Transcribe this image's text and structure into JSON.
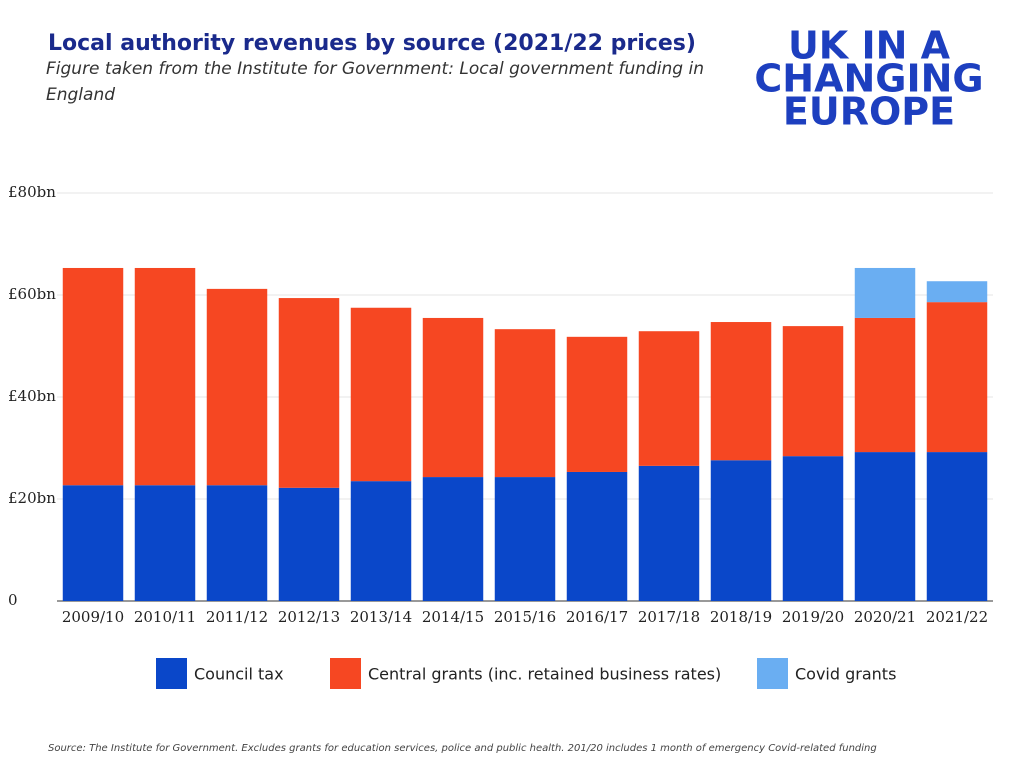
{
  "chart_data": {
    "type": "stacked_bar",
    "title": "Local authority revenues by source (2021/22 prices)",
    "subtitle": "Figure taken from the Institute for Government: Local government funding in England",
    "logo": [
      "UK IN A",
      "CHANGING",
      "EUROPE"
    ],
    "source": "Source: The Institute for Government. Excludes grants for education services, police and public health. 201/20 includes 1 month of emergency Covid-related funding",
    "categories": [
      "2009/10",
      "2010/11",
      "2011/12",
      "2012/13",
      "2013/14",
      "2014/15",
      "2015/16",
      "2016/17",
      "2017/18",
      "2018/19",
      "2019/20",
      "2020/21",
      "2021/22"
    ],
    "series": [
      {
        "name": "Council tax",
        "color": "#0a47c9",
        "values": [
          22.7,
          22.7,
          22.7,
          22.2,
          23.5,
          24.3,
          24.3,
          25.3,
          26.5,
          27.6,
          28.4,
          29.2,
          29.2
        ]
      },
      {
        "name": "Central grants (inc. retained business rates)",
        "color": "#f64722",
        "values": [
          42.6,
          42.6,
          38.5,
          37.2,
          34.0,
          31.2,
          29.0,
          26.5,
          26.4,
          27.1,
          25.5,
          26.3,
          29.4
        ]
      },
      {
        "name": "Covid grants",
        "color": "#6aaef2",
        "values": [
          null,
          null,
          null,
          null,
          null,
          null,
          null,
          null,
          null,
          null,
          null,
          9.8,
          4.1
        ]
      }
    ],
    "ylim": [
      0,
      80
    ],
    "yticks": [
      0,
      {
        "value": 20,
        "label": "£20bn"
      },
      {
        "value": 40,
        "label": "£40bn"
      },
      {
        "value": 60,
        "label": "£60bn"
      },
      {
        "value": 80,
        "label": "£80bn"
      }
    ],
    "grid": true
  }
}
